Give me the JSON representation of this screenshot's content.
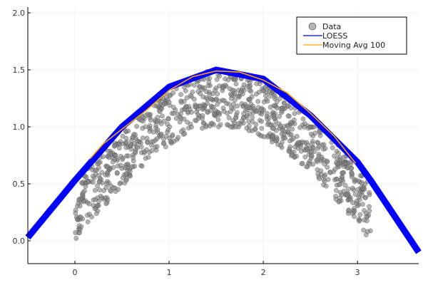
{
  "chart_data": {
    "type": "scatter",
    "title": "",
    "xlabel": "",
    "ylabel": "",
    "xlim": [
      -0.5,
      3.65
    ],
    "ylim": [
      -0.2,
      2.05
    ],
    "xticks": [
      0,
      1,
      2,
      3
    ],
    "xtick_labels": [
      "0",
      "1",
      "2",
      "3"
    ],
    "yticks": [
      0.0,
      0.5,
      1.0,
      1.5,
      2.0
    ],
    "ytick_labels": [
      "0.0",
      "0.5",
      "1.0",
      "1.5",
      "2.0"
    ],
    "grid": true,
    "legend_position": "top-right",
    "series": [
      {
        "name": "Data",
        "kind": "scatter",
        "color": "#808080",
        "description_model": "y = sin(x) + uniform(0, 0.5) noise, x in [0, 3.14]",
        "n_points": 1000,
        "x_range": [
          0,
          3.14
        ],
        "noise_range": [
          0,
          0.5
        ]
      },
      {
        "name": "LOESS",
        "kind": "line",
        "color": "#0000ff",
        "x": [
          -0.5,
          0.0,
          0.5,
          1.0,
          1.5,
          2.0,
          2.5,
          3.0,
          3.14,
          3.65
        ],
        "y": [
          0.03,
          0.53,
          1.0,
          1.35,
          1.5,
          1.42,
          1.1,
          0.69,
          0.53,
          -0.1
        ]
      },
      {
        "name": "Moving Avg 100",
        "kind": "line",
        "color": "#ffa500",
        "x": [
          0.16,
          0.3,
          0.5,
          0.75,
          1.0,
          1.25,
          1.5,
          1.75,
          2.0,
          2.25,
          2.5,
          2.75,
          2.98
        ],
        "y": [
          0.72,
          0.85,
          0.98,
          1.14,
          1.32,
          1.44,
          1.49,
          1.48,
          1.41,
          1.3,
          1.12,
          0.92,
          0.68
        ]
      }
    ]
  }
}
